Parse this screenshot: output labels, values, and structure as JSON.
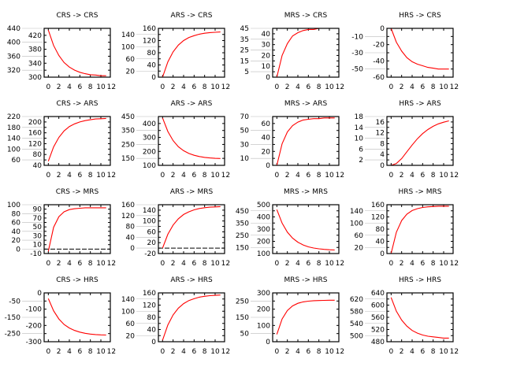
{
  "chart_data": [
    {
      "type": "line",
      "title": "CRS -> CRS",
      "x": [
        0,
        1,
        2,
        3,
        4,
        5,
        6,
        7,
        8,
        9,
        10,
        11
      ],
      "values": [
        435,
        391,
        362,
        342,
        329,
        320,
        314,
        310,
        307,
        306,
        304,
        304
      ],
      "ylim": [
        300,
        440
      ],
      "yticks": [
        300,
        320,
        340,
        360,
        380,
        400,
        420,
        440
      ],
      "xticks": [
        0,
        2,
        4,
        6,
        8,
        10,
        12
      ],
      "zero_line": false,
      "color": "#ff0000"
    },
    {
      "type": "line",
      "title": "ARS -> CRS",
      "x": [
        0,
        1,
        2,
        3,
        4,
        5,
        6,
        7,
        8,
        9,
        10,
        11
      ],
      "values": [
        0,
        50,
        83,
        105,
        120,
        130,
        136,
        141,
        144,
        146,
        147,
        148
      ],
      "ylim": [
        0,
        160
      ],
      "yticks": [
        0,
        20,
        40,
        60,
        80,
        100,
        120,
        140,
        160
      ],
      "xticks": [
        0,
        2,
        4,
        6,
        8,
        10,
        12
      ],
      "zero_line": false,
      "color": "#ff0000"
    },
    {
      "type": "line",
      "title": "MRS -> CRS",
      "x": [
        0,
        1,
        2,
        3,
        4,
        5,
        6,
        7,
        8,
        9,
        10,
        11
      ],
      "values": [
        0,
        20,
        31,
        38,
        41,
        43,
        44,
        44,
        45,
        45,
        45,
        45
      ],
      "ylim": [
        0,
        45
      ],
      "yticks": [
        0,
        5,
        10,
        15,
        20,
        25,
        30,
        35,
        40,
        45
      ],
      "xticks": [
        0,
        2,
        4,
        6,
        8,
        10,
        12
      ],
      "zero_line": false,
      "color": "#ff0000"
    },
    {
      "type": "line",
      "title": "HRS -> CRS",
      "x": [
        0,
        1,
        2,
        3,
        4,
        5,
        6,
        7,
        8,
        9,
        10,
        11
      ],
      "values": [
        0,
        -17,
        -28,
        -36,
        -41,
        -44,
        -46,
        -48,
        -49,
        -50,
        -50,
        -50
      ],
      "ylim": [
        -60,
        0
      ],
      "yticks": [
        -60,
        -50,
        -40,
        -30,
        -20,
        -10,
        0
      ],
      "xticks": [
        0,
        2,
        4,
        6,
        8,
        10,
        12
      ],
      "zero_line": false,
      "color": "#ff0000"
    },
    {
      "type": "line",
      "title": "CRS -> ARS",
      "x": [
        0,
        1,
        2,
        3,
        4,
        5,
        6,
        7,
        8,
        9,
        10,
        11
      ],
      "values": [
        55,
        108,
        143,
        167,
        183,
        193,
        200,
        205,
        208,
        211,
        212,
        213
      ],
      "ylim": [
        40,
        220
      ],
      "yticks": [
        40,
        60,
        80,
        100,
        120,
        140,
        160,
        180,
        200,
        220
      ],
      "xticks": [
        0,
        2,
        4,
        6,
        8,
        10,
        12
      ],
      "zero_line": false,
      "color": "#ff0000"
    },
    {
      "type": "line",
      "title": "ARS -> ARS",
      "x": [
        0,
        1,
        2,
        3,
        4,
        5,
        6,
        7,
        8,
        9,
        10,
        11
      ],
      "values": [
        440,
        343,
        277,
        234,
        205,
        185,
        172,
        163,
        157,
        153,
        150,
        149
      ],
      "ylim": [
        100,
        450
      ],
      "yticks": [
        100,
        150,
        200,
        250,
        300,
        350,
        400,
        450
      ],
      "xticks": [
        0,
        2,
        4,
        6,
        8,
        10,
        12
      ],
      "zero_line": false,
      "color": "#ff0000"
    },
    {
      "type": "line",
      "title": "MRS -> ARS",
      "x": [
        0,
        1,
        2,
        3,
        4,
        5,
        6,
        7,
        8,
        9,
        10,
        11
      ],
      "values": [
        0,
        31,
        48,
        57,
        62,
        65,
        66,
        67,
        67,
        68,
        68,
        68
      ],
      "ylim": [
        0,
        70
      ],
      "yticks": [
        0,
        10,
        20,
        30,
        40,
        50,
        60,
        70
      ],
      "xticks": [
        0,
        2,
        4,
        6,
        8,
        10,
        12
      ],
      "zero_line": false,
      "color": "#ff0000"
    },
    {
      "type": "line",
      "title": "HRS -> ARS",
      "x": [
        0,
        1,
        2,
        3,
        4,
        5,
        6,
        7,
        8,
        9,
        10,
        11
      ],
      "values": [
        0,
        0.7,
        2.5,
        5,
        7.5,
        9.8,
        11.7,
        13.2,
        14.4,
        15.3,
        15.9,
        16.4
      ],
      "ylim": [
        0,
        18
      ],
      "yticks": [
        0,
        2,
        4,
        6,
        8,
        10,
        12,
        14,
        16,
        18
      ],
      "xticks": [
        0,
        2,
        4,
        6,
        8,
        10,
        12
      ],
      "zero_line": false,
      "color": "#ff0000"
    },
    {
      "type": "line",
      "title": "CRS -> MRS",
      "x": [
        0,
        1,
        2,
        3,
        4,
        5,
        6,
        7,
        8,
        9,
        10,
        11
      ],
      "values": [
        -5,
        49,
        73,
        84,
        89,
        91,
        92,
        93,
        93,
        93,
        93,
        93
      ],
      "ylim": [
        -10,
        100
      ],
      "yticks": [
        -10,
        0,
        10,
        20,
        30,
        40,
        50,
        60,
        70,
        80,
        90,
        100
      ],
      "xticks": [
        0,
        2,
        4,
        6,
        8,
        10,
        12
      ],
      "zero_line": true,
      "color": "#ff0000"
    },
    {
      "type": "line",
      "title": "ARS -> MRS",
      "x": [
        0,
        1,
        2,
        3,
        4,
        5,
        6,
        7,
        8,
        9,
        10,
        11
      ],
      "values": [
        0,
        51,
        85,
        108,
        124,
        134,
        141,
        146,
        149,
        151,
        152,
        153
      ],
      "ylim": [
        -20,
        160
      ],
      "yticks": [
        -20,
        0,
        20,
        40,
        60,
        80,
        100,
        120,
        140,
        160
      ],
      "xticks": [
        0,
        2,
        4,
        6,
        8,
        10,
        12
      ],
      "zero_line": true,
      "color": "#ff0000"
    },
    {
      "type": "line",
      "title": "MRS -> MRS",
      "x": [
        0,
        1,
        2,
        3,
        4,
        5,
        6,
        7,
        8,
        9,
        10,
        11
      ],
      "values": [
        460,
        349,
        275,
        226,
        193,
        170,
        155,
        145,
        139,
        134,
        131,
        129
      ],
      "ylim": [
        100,
        500
      ],
      "yticks": [
        100,
        150,
        200,
        250,
        300,
        350,
        400,
        450,
        500
      ],
      "xticks": [
        0,
        2,
        4,
        6,
        8,
        10,
        12
      ],
      "zero_line": false,
      "color": "#ff0000"
    },
    {
      "type": "line",
      "title": "HRS -> MRS",
      "x": [
        0,
        1,
        2,
        3,
        4,
        5,
        6,
        7,
        8,
        9,
        10,
        11
      ],
      "values": [
        0,
        70,
        108,
        129,
        141,
        147,
        151,
        153,
        154,
        155,
        155,
        155
      ],
      "ylim": [
        0,
        160
      ],
      "yticks": [
        0,
        20,
        40,
        60,
        80,
        100,
        120,
        140,
        160
      ],
      "xticks": [
        0,
        2,
        4,
        6,
        8,
        10,
        12
      ],
      "zero_line": false,
      "color": "#ff0000"
    },
    {
      "type": "line",
      "title": "CRS -> HRS",
      "x": [
        0,
        1,
        2,
        3,
        4,
        5,
        6,
        7,
        8,
        9,
        10,
        11
      ],
      "values": [
        -35,
        -110,
        -160,
        -194,
        -216,
        -231,
        -241,
        -248,
        -253,
        -256,
        -258,
        -259
      ],
      "ylim": [
        -300,
        0
      ],
      "yticks": [
        -300,
        -250,
        -200,
        -150,
        -100,
        -50,
        0
      ],
      "xticks": [
        0,
        2,
        4,
        6,
        8,
        10,
        12
      ],
      "zero_line": false,
      "color": "#ff0000"
    },
    {
      "type": "line",
      "title": "ARS -> HRS",
      "x": [
        0,
        1,
        2,
        3,
        4,
        5,
        6,
        7,
        8,
        9,
        10,
        11
      ],
      "values": [
        5,
        55,
        88,
        110,
        125,
        135,
        141,
        146,
        149,
        151,
        152,
        153
      ],
      "ylim": [
        0,
        160
      ],
      "yticks": [
        0,
        20,
        40,
        60,
        80,
        100,
        120,
        140,
        160
      ],
      "xticks": [
        0,
        2,
        4,
        6,
        8,
        10,
        12
      ],
      "zero_line": false,
      "color": "#ff0000"
    },
    {
      "type": "line",
      "title": "MRS -> HRS",
      "x": [
        0,
        1,
        2,
        3,
        4,
        5,
        6,
        7,
        8,
        9,
        10,
        11
      ],
      "values": [
        45,
        140,
        192,
        220,
        236,
        245,
        249,
        252,
        253,
        254,
        255,
        255
      ],
      "ylim": [
        0,
        300
      ],
      "yticks": [
        0,
        50,
        100,
        150,
        200,
        250,
        300
      ],
      "xticks": [
        0,
        2,
        4,
        6,
        8,
        10,
        12
      ],
      "zero_line": false,
      "color": "#ff0000"
    },
    {
      "type": "line",
      "title": "HRS -> HRS",
      "x": [
        0,
        1,
        2,
        3,
        4,
        5,
        6,
        7,
        8,
        9,
        10,
        11
      ],
      "values": [
        625,
        580,
        551,
        531,
        517,
        508,
        502,
        498,
        496,
        494,
        492,
        492
      ],
      "ylim": [
        480,
        640
      ],
      "yticks": [
        480,
        500,
        520,
        540,
        560,
        580,
        600,
        620,
        640
      ],
      "xticks": [
        0,
        2,
        4,
        6,
        8,
        10,
        12
      ],
      "zero_line": false,
      "color": "#ff0000"
    }
  ]
}
